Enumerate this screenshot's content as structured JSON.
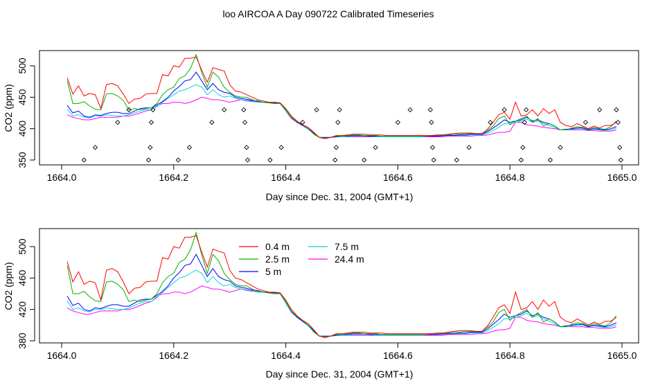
{
  "page": {
    "title": "loo AIRCOA A  Day 090722  Calibrated Timeseries"
  },
  "colors": {
    "s04": "#ff0000",
    "s25": "#00b000",
    "s5": "#0000ff",
    "s75": "#00d8d8",
    "s244": "#ff00ff"
  },
  "chart_data": [
    {
      "type": "line",
      "xlabel": "Day since Dec. 31, 2004 (GMT+1)",
      "ylabel": "CO2 (ppm)",
      "xlim": [
        1664.0,
        1665.0
      ],
      "ylim": [
        340,
        520
      ],
      "xticks": [
        1664.0,
        1664.2,
        1664.4,
        1664.6,
        1664.8,
        1665.0
      ],
      "xtick_labels": [
        "1664.0",
        "1664.2",
        "1664.4",
        "1664.6",
        "1664.8",
        "1665.0"
      ],
      "yticks": [
        350,
        400,
        450,
        500
      ],
      "ytick_labels": [
        "350",
        "400",
        "450",
        "500"
      ],
      "grid": false,
      "series_markers": {
        "name": "",
        "points": [
          [
            1664.04,
            350
          ],
          [
            1664.06,
            370
          ],
          [
            1664.1,
            410
          ],
          [
            1664.12,
            430
          ],
          [
            1664.155,
            350
          ],
          [
            1664.158,
            370
          ],
          [
            1664.16,
            410
          ],
          [
            1664.163,
            430
          ],
          [
            1664.208,
            350
          ],
          [
            1664.228,
            370
          ],
          [
            1664.268,
            410
          ],
          [
            1664.29,
            430
          ],
          [
            1664.325,
            430
          ],
          [
            1664.327,
            410
          ],
          [
            1664.33,
            370
          ],
          [
            1664.332,
            350
          ],
          [
            1664.372,
            350
          ],
          [
            1664.392,
            370
          ],
          [
            1664.43,
            410
          ],
          [
            1664.455,
            430
          ],
          [
            1664.488,
            350
          ],
          [
            1664.49,
            370
          ],
          [
            1664.493,
            410
          ],
          [
            1664.496,
            430
          ],
          [
            1664.54,
            350
          ],
          [
            1664.56,
            370
          ],
          [
            1664.6,
            410
          ],
          [
            1664.622,
            430
          ],
          [
            1664.658,
            430
          ],
          [
            1664.66,
            410
          ],
          [
            1664.662,
            370
          ],
          [
            1664.664,
            350
          ],
          [
            1664.705,
            350
          ],
          [
            1664.727,
            370
          ],
          [
            1664.765,
            410
          ],
          [
            1664.79,
            430
          ],
          [
            1664.82,
            350
          ],
          [
            1664.823,
            370
          ],
          [
            1664.826,
            410
          ],
          [
            1664.829,
            430
          ],
          [
            1664.872,
            350
          ],
          [
            1664.89,
            370
          ],
          [
            1664.935,
            410
          ],
          [
            1664.96,
            430
          ],
          [
            1664.99,
            430
          ],
          [
            1664.993,
            410
          ],
          [
            1664.996,
            370
          ],
          [
            1664.998,
            350
          ]
        ]
      }
    },
    {
      "type": "line",
      "xlabel": "Day since Dec. 31, 2004 (GMT+1)",
      "ylabel": "CO2 (ppm)",
      "xlim": [
        1664.0,
        1665.0
      ],
      "ylim": [
        380,
        515
      ],
      "xticks": [
        1664.0,
        1664.2,
        1664.4,
        1664.6,
        1664.8,
        1665.0
      ],
      "xtick_labels": [
        "1664.0",
        "1664.2",
        "1664.4",
        "1664.6",
        "1664.8",
        "1665.0"
      ],
      "yticks": [
        380,
        420,
        460,
        500
      ],
      "ytick_labels": [
        "380",
        "420",
        "460",
        "500"
      ],
      "grid": false,
      "legend": {
        "placement": "top-center",
        "entries": [
          "0.4 m",
          "2.5 m",
          "5 m",
          "7.5 m",
          "24.4 m"
        ]
      }
    }
  ],
  "shared_series": {
    "x": [
      1664.01,
      1664.02,
      1664.03,
      1664.04,
      1664.05,
      1664.06,
      1664.07,
      1664.08,
      1664.09,
      1664.1,
      1664.11,
      1664.12,
      1664.13,
      1664.14,
      1664.15,
      1664.16,
      1664.17,
      1664.18,
      1664.19,
      1664.2,
      1664.21,
      1664.22,
      1664.23,
      1664.24,
      1664.25,
      1664.26,
      1664.27,
      1664.28,
      1664.29,
      1664.3,
      1664.31,
      1664.32,
      1664.33,
      1664.34,
      1664.35,
      1664.36,
      1664.37,
      1664.38,
      1664.39,
      1664.4,
      1664.41,
      1664.42,
      1664.43,
      1664.44,
      1664.45,
      1664.46,
      1664.47,
      1664.48,
      1664.49,
      1664.5,
      1664.51,
      1664.52,
      1664.53,
      1664.54,
      1664.55,
      1664.56,
      1664.57,
      1664.58,
      1664.59,
      1664.6,
      1664.61,
      1664.62,
      1664.63,
      1664.64,
      1664.65,
      1664.66,
      1664.67,
      1664.68,
      1664.69,
      1664.7,
      1664.71,
      1664.72,
      1664.73,
      1664.74,
      1664.75,
      1664.76,
      1664.77,
      1664.78,
      1664.79,
      1664.8,
      1664.81,
      1664.82,
      1664.83,
      1664.84,
      1664.85,
      1664.86,
      1664.87,
      1664.88,
      1664.89,
      1664.9,
      1664.91,
      1664.92,
      1664.93,
      1664.94,
      1664.95,
      1664.96,
      1664.97,
      1664.98,
      1664.99
    ],
    "series": [
      {
        "name": "0.4 m",
        "values": [
          481,
          455,
          468,
          452,
          456,
          454,
          432,
          470,
          472,
          468,
          455,
          440,
          447,
          448,
          455,
          456,
          456,
          486,
          484,
          500,
          498,
          512,
          512,
          514,
          493,
          474,
          497,
          494,
          492,
          470,
          460,
          458,
          454,
          450,
          446,
          444,
          442,
          442,
          441,
          432,
          420,
          412,
          406,
          402,
          394,
          386,
          384,
          386,
          389,
          389,
          390,
          391,
          391,
          391,
          390,
          390,
          390,
          389,
          389,
          389,
          389,
          389,
          389,
          389,
          389,
          389,
          390,
          390,
          391,
          392,
          393,
          393,
          393,
          392,
          392,
          399,
          410,
          422,
          426,
          415,
          442,
          420,
          422,
          430,
          420,
          432,
          424,
          430,
          410,
          405,
          403,
          408,
          404,
          400,
          404,
          401,
          405,
          405,
          410
        ]
      },
      {
        "name": "2.5 m",
        "values": [
          476,
          440,
          440,
          443,
          436,
          431,
          430,
          455,
          456,
          452,
          445,
          430,
          432,
          430,
          432,
          433,
          440,
          454,
          462,
          466,
          480,
          484,
          496,
          518,
          489,
          466,
          490,
          482,
          466,
          458,
          452,
          450,
          450,
          446,
          443,
          442,
          441,
          440,
          440,
          430,
          418,
          411,
          406,
          400,
          391,
          386,
          385,
          386,
          388,
          388,
          389,
          390,
          390,
          389,
          389,
          389,
          388,
          388,
          388,
          388,
          388,
          388,
          388,
          388,
          388,
          389,
          389,
          390,
          390,
          391,
          391,
          392,
          392,
          392,
          392,
          397,
          404,
          416,
          420,
          406,
          412,
          416,
          420,
          410,
          416,
          404,
          408,
          404,
          398,
          398,
          401,
          403,
          402,
          399,
          402,
          400,
          399,
          403,
          412
        ]
      },
      {
        "name": "5 m",
        "values": [
          437,
          425,
          428,
          420,
          418,
          422,
          421,
          424,
          426,
          426,
          424,
          424,
          428,
          432,
          433,
          433,
          438,
          443,
          450,
          460,
          467,
          476,
          478,
          490,
          476,
          462,
          472,
          462,
          458,
          456,
          450,
          448,
          447,
          445,
          444,
          442,
          442,
          441,
          441,
          430,
          418,
          410,
          405,
          400,
          393,
          386,
          386,
          386,
          387,
          388,
          388,
          389,
          389,
          389,
          388,
          388,
          388,
          388,
          388,
          388,
          388,
          388,
          388,
          388,
          388,
          388,
          388,
          389,
          389,
          389,
          390,
          390,
          391,
          391,
          391,
          395,
          401,
          407,
          414,
          410,
          412,
          414,
          418,
          412,
          414,
          410,
          408,
          404,
          398,
          399,
          400,
          401,
          401,
          398,
          400,
          399,
          398,
          400,
          403
        ]
      },
      {
        "name": "7.5 m",
        "values": [
          431,
          420,
          422,
          418,
          417,
          420,
          420,
          422,
          421,
          420,
          420,
          422,
          425,
          428,
          430,
          430,
          435,
          442,
          448,
          454,
          460,
          462,
          466,
          470,
          466,
          454,
          462,
          454,
          450,
          452,
          448,
          446,
          444,
          443,
          442,
          442,
          441,
          440,
          440,
          428,
          417,
          410,
          405,
          399,
          392,
          386,
          386,
          386,
          387,
          387,
          387,
          388,
          388,
          388,
          388,
          387,
          387,
          387,
          387,
          387,
          387,
          387,
          387,
          387,
          388,
          388,
          388,
          388,
          389,
          389,
          389,
          389,
          390,
          390,
          390,
          393,
          397,
          402,
          408,
          408,
          410,
          412,
          415,
          410,
          412,
          408,
          405,
          402,
          398,
          398,
          399,
          400,
          400,
          398,
          399,
          398,
          397,
          398,
          401
        ]
      },
      {
        "name": "24.4 m",
        "values": [
          422,
          418,
          416,
          414,
          414,
          416,
          418,
          418,
          418,
          418,
          420,
          420,
          422,
          425,
          428,
          430,
          436,
          440,
          440,
          442,
          442,
          440,
          442,
          446,
          450,
          448,
          446,
          446,
          444,
          442,
          444,
          446,
          445,
          444,
          443,
          442,
          441,
          440,
          440,
          428,
          416,
          410,
          405,
          399,
          392,
          386,
          386,
          386,
          387,
          387,
          387,
          387,
          387,
          387,
          387,
          387,
          387,
          387,
          387,
          387,
          387,
          387,
          387,
          387,
          387,
          387,
          387,
          387,
          388,
          388,
          388,
          388,
          388,
          389,
          389,
          390,
          392,
          394,
          394,
          396,
          410,
          410,
          406,
          405,
          404,
          402,
          401,
          400,
          398,
          398,
          398,
          398,
          398,
          397,
          397,
          396,
          396,
          396,
          398
        ]
      }
    ]
  }
}
